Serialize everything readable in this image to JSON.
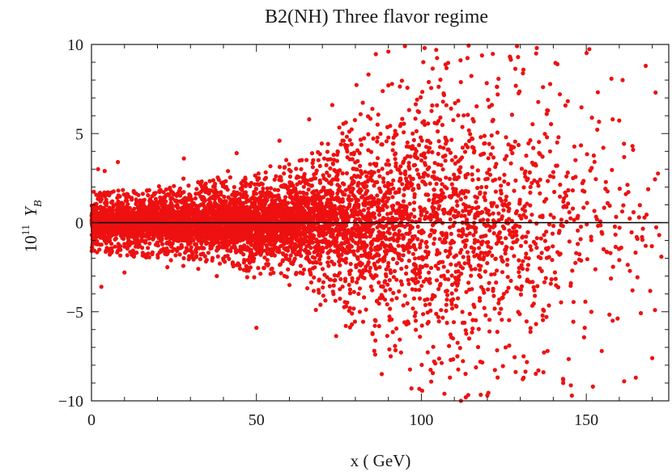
{
  "chart_data": {
    "type": "scatter",
    "title": "B2(NH) Three flavor regime",
    "xlabel": "x ( GeV)",
    "ylabel": {
      "base": "10",
      "exponent": "11",
      "symbol": "Y",
      "subscript": "B"
    },
    "xlim": [
      0,
      175
    ],
    "ylim": [
      -10,
      10
    ],
    "x_ticks": [
      0,
      50,
      100,
      150
    ],
    "x_tick_labels": [
      "0",
      "50",
      "100",
      "150"
    ],
    "y_ticks": [
      -10,
      -5,
      0,
      5,
      10
    ],
    "y_tick_labels": [
      "−10",
      "−5",
      "0",
      "5",
      "10"
    ],
    "reference_line_y": 0,
    "grid": false,
    "legend": "none",
    "point_color": "#ee1111",
    "density_profile": {
      "description_of_spread": "samples widen with x",
      "spread": [
        [
          0,
          1.4
        ],
        [
          20,
          1.6
        ],
        [
          40,
          2.0
        ],
        [
          60,
          2.6
        ],
        [
          70,
          3.8
        ],
        [
          80,
          5.0
        ],
        [
          90,
          6.4
        ],
        [
          100,
          7.6
        ],
        [
          110,
          8.2
        ],
        [
          120,
          8.4
        ],
        [
          130,
          8.2
        ],
        [
          140,
          8.0
        ],
        [
          150,
          7.8
        ],
        [
          160,
          7.4
        ],
        [
          172,
          7.0
        ]
      ],
      "density": [
        [
          0,
          95
        ],
        [
          20,
          110
        ],
        [
          40,
          115
        ],
        [
          60,
          105
        ],
        [
          70,
          90
        ],
        [
          80,
          75
        ],
        [
          90,
          65
        ],
        [
          100,
          55
        ],
        [
          110,
          50
        ],
        [
          120,
          40
        ],
        [
          130,
          30
        ],
        [
          140,
          18
        ],
        [
          150,
          11
        ],
        [
          160,
          7
        ],
        [
          172,
          3
        ]
      ]
    },
    "sample_points": [
      [
        2,
        3.0
      ],
      [
        4,
        2.9
      ],
      [
        8,
        3.4
      ],
      [
        28,
        3.6
      ],
      [
        44,
        3.9
      ],
      [
        57,
        4.6
      ],
      [
        66,
        5.8
      ],
      [
        73,
        6.6
      ],
      [
        90,
        9.6
      ],
      [
        95,
        9.9
      ],
      [
        101,
        9.8
      ],
      [
        129,
        9.9
      ],
      [
        135,
        9.8
      ],
      [
        161,
        8.0
      ],
      [
        168,
        8.8
      ],
      [
        171,
        7.3
      ],
      [
        158,
        5.8
      ],
      [
        164,
        4.3
      ],
      [
        162,
        1.6
      ],
      [
        166,
        0.3
      ],
      [
        168,
        -1.3
      ],
      [
        160,
        -2.1
      ],
      [
        158,
        -5.5
      ],
      [
        170,
        -7.6
      ],
      [
        165,
        -8.7
      ],
      [
        164,
        -3.8
      ],
      [
        152,
        -9.2
      ],
      [
        143,
        -9.0
      ],
      [
        131,
        -7.5
      ],
      [
        120,
        -9.7
      ],
      [
        107,
        -9.6
      ],
      [
        97,
        -9.3
      ],
      [
        88,
        -8.5
      ],
      [
        86,
        -7.4
      ],
      [
        68,
        -4.9
      ],
      [
        60,
        -3.5
      ],
      [
        47,
        -2.7
      ],
      [
        38,
        -3.0
      ],
      [
        23,
        -2.5
      ],
      [
        10,
        -2.8
      ],
      [
        3,
        -3.6
      ],
      [
        50,
        -5.9
      ],
      [
        112,
        -10.0
      ],
      [
        125,
        -4.0
      ],
      [
        118,
        4.8
      ],
      [
        109,
        6.4
      ],
      [
        138,
        6.1
      ],
      [
        146,
        2.5
      ]
    ]
  }
}
